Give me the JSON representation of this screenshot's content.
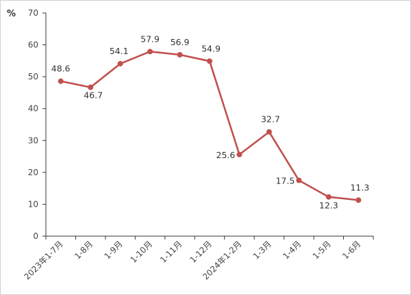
{
  "chart_data": {
    "type": "line",
    "title": "",
    "xlabel": "",
    "ylabel": "%",
    "ylim": [
      0,
      70
    ],
    "yticks": [
      0,
      10,
      20,
      30,
      40,
      50,
      60,
      70
    ],
    "grid": false,
    "categories": [
      "2023年1-7月",
      "1-8月",
      "1-9月",
      "1-10月",
      "1-11月",
      "1-12月",
      "2024年1-2月",
      "1-3月",
      "1-4月",
      "1-5月",
      "1-6月"
    ],
    "series": [
      {
        "name": "",
        "color": "#c0504d",
        "values": [
          48.6,
          46.7,
          54.1,
          57.9,
          56.9,
          54.9,
          25.6,
          32.7,
          17.5,
          12.3,
          11.3
        ],
        "labels": [
          "48.6",
          "46.7",
          "54.1",
          "57.9",
          "56.9",
          "54.9",
          "25.6",
          "32.7",
          "17.5",
          "12.3",
          "11.3"
        ]
      }
    ]
  }
}
